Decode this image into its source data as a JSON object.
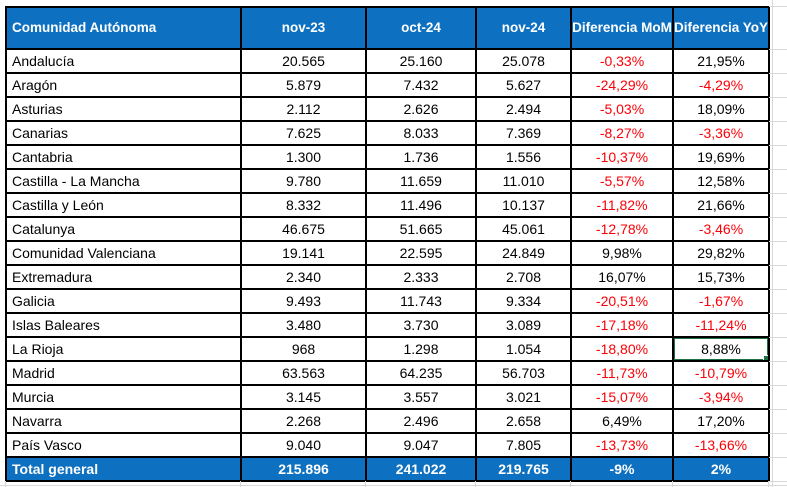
{
  "table": {
    "columns": [
      "Comunidad Autónoma",
      "nov-23",
      "oct-24",
      "nov-24",
      "Diferencia MoM",
      "Diferencia YoY"
    ],
    "rows": [
      {
        "region": "Andalucía",
        "nov23": "20.565",
        "oct24": "25.160",
        "nov24": "25.078",
        "mom": "-0,33%",
        "yoy": "21,95%"
      },
      {
        "region": "Aragón",
        "nov23": "5.879",
        "oct24": "7.432",
        "nov24": "5.627",
        "mom": "-24,29%",
        "yoy": "-4,29%"
      },
      {
        "region": "Asturias",
        "nov23": "2.112",
        "oct24": "2.626",
        "nov24": "2.494",
        "mom": "-5,03%",
        "yoy": "18,09%"
      },
      {
        "region": "Canarias",
        "nov23": "7.625",
        "oct24": "8.033",
        "nov24": "7.369",
        "mom": "-8,27%",
        "yoy": "-3,36%"
      },
      {
        "region": "Cantabria",
        "nov23": "1.300",
        "oct24": "1.736",
        "nov24": "1.556",
        "mom": "-10,37%",
        "yoy": "19,69%"
      },
      {
        "region": "Castilla - La Mancha",
        "nov23": "9.780",
        "oct24": "11.659",
        "nov24": "11.010",
        "mom": "-5,57%",
        "yoy": "12,58%"
      },
      {
        "region": "Castilla y León",
        "nov23": "8.332",
        "oct24": "11.496",
        "nov24": "10.137",
        "mom": "-11,82%",
        "yoy": "21,66%"
      },
      {
        "region": "Catalunya",
        "nov23": "46.675",
        "oct24": "51.665",
        "nov24": "45.061",
        "mom": "-12,78%",
        "yoy": "-3,46%"
      },
      {
        "region": "Comunidad Valenciana",
        "nov23": "19.141",
        "oct24": "22.595",
        "nov24": "24.849",
        "mom": "9,98%",
        "yoy": "29,82%"
      },
      {
        "region": "Extremadura",
        "nov23": "2.340",
        "oct24": "2.333",
        "nov24": "2.708",
        "mom": "16,07%",
        "yoy": "15,73%"
      },
      {
        "region": "Galicia",
        "nov23": "9.493",
        "oct24": "11.743",
        "nov24": "9.334",
        "mom": "-20,51%",
        "yoy": "-1,67%"
      },
      {
        "region": "Islas Baleares",
        "nov23": "3.480",
        "oct24": "3.730",
        "nov24": "3.089",
        "mom": "-17,18%",
        "yoy": "-11,24%"
      },
      {
        "region": "La Rioja",
        "nov23": "968",
        "oct24": "1.298",
        "nov24": "1.054",
        "mom": "-18,80%",
        "yoy": "8,88%"
      },
      {
        "region": "Madrid",
        "nov23": "63.563",
        "oct24": "64.235",
        "nov24": "56.703",
        "mom": "-11,73%",
        "yoy": "-10,79%"
      },
      {
        "region": "Murcia",
        "nov23": "3.145",
        "oct24": "3.557",
        "nov24": "3.021",
        "mom": "-15,07%",
        "yoy": "-3,94%"
      },
      {
        "region": "Navarra",
        "nov23": "2.268",
        "oct24": "2.496",
        "nov24": "2.658",
        "mom": "6,49%",
        "yoy": "17,20%"
      },
      {
        "region": "País Vasco",
        "nov23": "9.040",
        "oct24": "9.047",
        "nov24": "7.805",
        "mom": "-13,73%",
        "yoy": "-13,66%"
      }
    ],
    "total": {
      "region": "Total general",
      "nov23": "215.896",
      "oct24": "241.022",
      "nov24": "219.765",
      "mom": "-9%",
      "yoy": "2%"
    },
    "selection": {
      "row": "La Rioja",
      "row_index": 12,
      "column": "Diferencia YoY",
      "column_key": "yoy",
      "value": "8,88%"
    }
  },
  "colors": {
    "header_bg": "#0d70c0",
    "header_text": "#ffffff",
    "negative": "#fb0007",
    "body_text": "#000000",
    "table_border": "#000000",
    "selection_border": "#1e7145",
    "gridline": "#d8d8d8"
  }
}
